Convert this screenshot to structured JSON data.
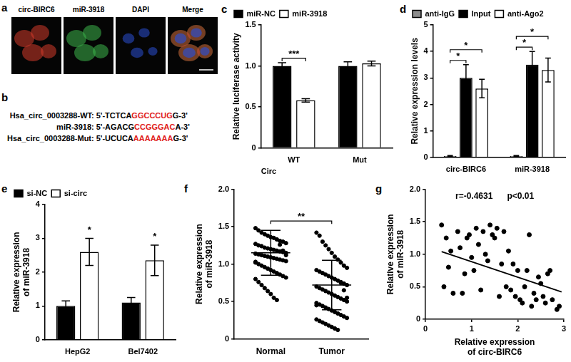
{
  "panels": {
    "a": {
      "panel_label": "a",
      "images": [
        "circ-BIRC6",
        "miR-3918",
        "DAPI",
        "Merge"
      ]
    },
    "b": {
      "panel_label": "b",
      "color": "#e02020",
      "sequences": [
        {
          "label": "Hsa_circ_0003288-WT:",
          "start": "5'-TCTCA",
          "site": "GGCCCUG",
          "end": "G-3'"
        },
        {
          "label": "miR-3918:",
          "start": "5'-AGACG",
          "site": "CCGGGAC",
          "end": "A-3'"
        },
        {
          "label": "Hsa_circ_0003288-Mut:",
          "start": "5'-UCUCA",
          "site": "AAAAAAA",
          "end": "G-3'"
        }
      ]
    }
  },
  "chart_data": [
    {
      "panel_label": "c",
      "type": "bar",
      "categories": [
        "WT",
        "Mut"
      ],
      "x_label": "Circ",
      "y_label": "Relative luciferase activity",
      "series": [
        {
          "name": "miR-NC",
          "color": "#000000",
          "values": [
            1.0,
            1.0
          ],
          "errors": [
            0.04,
            0.05
          ]
        },
        {
          "name": "miR-3918",
          "color": "#ffffff",
          "values": [
            0.58,
            1.03
          ],
          "errors": [
            0.02,
            0.03
          ]
        }
      ],
      "ylim": [
        0,
        1.5
      ],
      "yticks": [
        0,
        0.5,
        {
          "value": 1,
          "label": "1.0"
        },
        1.5
      ],
      "grid": false,
      "legend": "upper left",
      "annotations": [
        {
          "text": "***",
          "category": "WT",
          "from": "miR-NC",
          "to": "miR-3918"
        }
      ]
    },
    {
      "panel_label": "d",
      "type": "bar",
      "categories": [
        "circ-BIRC6",
        "miR-3918"
      ],
      "y_label": "Relative expression levels",
      "series": [
        {
          "name": "anti-IgG",
          "color": "#8c8c8c",
          "values": [
            0.05,
            0.05
          ],
          "errors": [
            0.02,
            0.02
          ]
        },
        {
          "name": "Input",
          "color": "#000000",
          "values": [
            3.0,
            3.5
          ],
          "errors": [
            0.5,
            0.5
          ]
        },
        {
          "name": "anti-Ago2",
          "color": "#ffffff",
          "values": [
            2.6,
            3.3
          ],
          "errors": [
            0.35,
            0.45
          ]
        }
      ],
      "ylim": [
        0,
        5
      ],
      "yticks": [
        0,
        1,
        2,
        3,
        4,
        5
      ],
      "grid": false,
      "legend": "upper left",
      "annotations": [
        {
          "text": "*",
          "category": "circ-BIRC6",
          "from": "anti-IgG",
          "to": "Input"
        },
        {
          "text": "*",
          "category": "circ-BIRC6",
          "from": "anti-IgG",
          "to": "anti-Ago2"
        },
        {
          "text": "*",
          "category": "miR-3918",
          "from": "anti-IgG",
          "to": "Input"
        },
        {
          "text": "*",
          "category": "miR-3918",
          "from": "anti-IgG",
          "to": "anti-Ago2"
        }
      ]
    },
    {
      "panel_label": "e",
      "type": "bar",
      "categories": [
        "HepG2",
        "Bel7402"
      ],
      "y_label": "Relative expression of miR-3918",
      "series": [
        {
          "name": "si-NC",
          "color": "#000000",
          "values": [
            1.0,
            1.1
          ],
          "errors": [
            0.15,
            0.15
          ]
        },
        {
          "name": "si-circ",
          "color": "#ffffff",
          "values": [
            2.6,
            2.35
          ],
          "errors": [
            0.4,
            0.45
          ]
        }
      ],
      "ylim": [
        0,
        4
      ],
      "yticks": [
        0,
        1,
        2,
        3,
        4
      ],
      "grid": false,
      "legend": "upper left",
      "annotations": [
        {
          "text": "*",
          "category": "HepG2",
          "series": "si-circ"
        },
        {
          "text": "*",
          "category": "Bel7402",
          "series": "si-circ"
        }
      ]
    },
    {
      "panel_label": "f",
      "type": "dotplot",
      "categories": [
        "Normal",
        "Tumor"
      ],
      "y_label": "Relative expression of miR-3918",
      "color": "#000000",
      "values": [
        [
          1.48,
          1.45,
          1.42,
          1.4,
          1.38,
          1.36,
          1.35,
          1.33,
          1.31,
          1.3,
          1.28,
          1.27,
          1.25,
          1.24,
          1.22,
          1.21,
          1.2,
          1.19,
          1.18,
          1.17,
          1.16,
          1.15,
          1.14,
          1.13,
          1.12,
          1.11,
          1.1,
          1.09,
          1.08,
          1.07,
          1.06,
          1.05,
          1.04,
          1.02,
          1.0,
          0.98,
          0.96,
          0.94,
          0.92,
          0.9,
          0.88,
          0.86,
          0.84,
          0.82,
          0.8,
          0.76,
          0.72,
          0.68,
          0.64,
          0.6,
          0.55,
          0.52,
          1.26,
          1.18,
          1.12,
          1.03
        ],
        [
          1.42,
          1.38,
          1.3,
          1.25,
          1.2,
          1.15,
          1.1,
          1.06,
          1.02,
          0.98,
          0.95,
          0.92,
          0.9,
          0.88,
          0.86,
          0.84,
          0.82,
          0.8,
          0.78,
          0.76,
          0.74,
          0.72,
          0.7,
          0.68,
          0.66,
          0.64,
          0.62,
          0.6,
          0.58,
          0.56,
          0.54,
          0.52,
          0.5,
          0.48,
          0.46,
          0.44,
          0.42,
          0.4,
          0.38,
          0.36,
          0.34,
          0.32,
          0.3,
          0.28,
          0.26,
          0.24,
          0.22,
          0.2,
          0.18,
          0.16,
          0.14,
          0.12,
          0.75,
          0.65,
          0.55,
          0.45
        ]
      ],
      "mean": [
        1.15,
        0.72
      ],
      "sd": [
        0.3,
        0.33
      ],
      "ylim": [
        0,
        2
      ],
      "yticks": [
        0,
        0.5,
        {
          "value": 1,
          "label": "1.0"
        },
        1.5,
        {
          "value": 2,
          "label": "2.0"
        }
      ],
      "grid": false,
      "annotations": [
        {
          "text": "**",
          "from": "Normal",
          "to": "Tumor"
        }
      ]
    },
    {
      "panel_label": "g",
      "type": "scatter",
      "color": "#000000",
      "x_label": "Relative expression of circ-BIRC6",
      "y_label": "Relative expression of miR-3918",
      "x": [
        0.35,
        0.4,
        0.45,
        0.5,
        0.55,
        0.6,
        0.7,
        0.75,
        0.8,
        0.85,
        0.9,
        0.95,
        1.0,
        1.05,
        1.1,
        1.15,
        1.2,
        1.25,
        1.3,
        1.35,
        1.4,
        1.45,
        1.5,
        1.55,
        1.6,
        1.65,
        1.7,
        1.75,
        1.8,
        1.85,
        1.9,
        1.95,
        2.0,
        2.05,
        2.1,
        2.15,
        2.2,
        2.25,
        2.3,
        2.35,
        2.4,
        2.45,
        2.5,
        2.55,
        2.6,
        2.65,
        2.7,
        2.75,
        2.85,
        2.9
      ],
      "values": [
        1.45,
        0.5,
        1.25,
        0.8,
        1.05,
        0.4,
        1.35,
        1.1,
        0.4,
        0.7,
        1.25,
        1.3,
        0.95,
        0.75,
        1.4,
        1.15,
        0.45,
        1.35,
        1.0,
        0.9,
        1.45,
        1.3,
        1.25,
        1.4,
        0.35,
        0.85,
        1.35,
        0.5,
        1.05,
        0.45,
        0.85,
        0.35,
        0.75,
        0.3,
        0.25,
        0.5,
        0.75,
        1.3,
        0.2,
        0.4,
        0.3,
        0.65,
        0.55,
        0.35,
        0.25,
        0.7,
        0.75,
        0.3,
        0.15,
        0.2
      ],
      "trend_line": {
        "x": [
          0.35,
          2.95
        ],
        "values": [
          1.04,
          0.42
        ]
      },
      "xlim": [
        0,
        3
      ],
      "xticks": [
        0,
        1,
        2,
        3
      ],
      "ylim": [
        0,
        2
      ],
      "yticks": [
        0,
        0.5,
        {
          "value": 1,
          "label": "1.0"
        },
        1.5,
        {
          "value": 2,
          "label": "2.0"
        }
      ],
      "grid": false,
      "annotations": [
        "r=-0.4631",
        "p<0.01"
      ]
    }
  ]
}
